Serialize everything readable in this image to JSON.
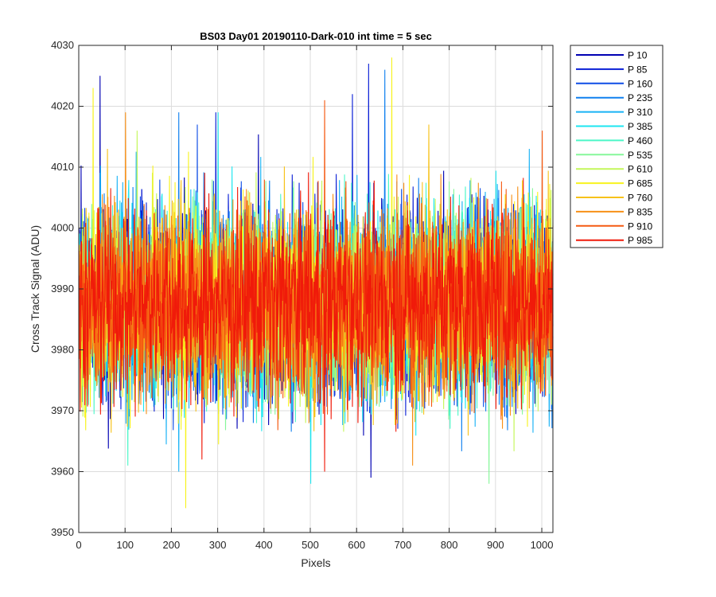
{
  "chart_data": {
    "type": "line",
    "title": "BS03 Day01 20190110-Dark-010 int time = 5 sec",
    "xlabel": "Pixels",
    "ylabel": "Cross Track Signal (ADU)",
    "xlim": [
      0,
      1024
    ],
    "ylim": [
      3950,
      4030
    ],
    "xticks": [
      0,
      100,
      200,
      300,
      400,
      500,
      600,
      700,
      800,
      900,
      1000
    ],
    "yticks": [
      3950,
      3960,
      3970,
      3980,
      3990,
      4000,
      4010,
      4020,
      4030
    ],
    "grid": true,
    "legend_position": "outside-top-right",
    "noise_band": {
      "center": 3988,
      "typical_low": 3975,
      "typical_high": 4003
    },
    "series": [
      {
        "name": "P 10",
        "color": "#0000b3",
        "peaks": [
          {
            "x": 630,
            "y": 3959
          },
          {
            "x": 45,
            "y": 4025
          }
        ]
      },
      {
        "name": "P 85",
        "color": "#0a1fd6",
        "peaks": [
          {
            "x": 625,
            "y": 4027
          },
          {
            "x": 590,
            "y": 4022
          },
          {
            "x": 295,
            "y": 4019
          }
        ]
      },
      {
        "name": "P 160",
        "color": "#0e4de6",
        "peaks": [
          {
            "x": 255,
            "y": 4017
          }
        ]
      },
      {
        "name": "P 235",
        "color": "#1080ef",
        "peaks": [
          {
            "x": 660,
            "y": 4026
          },
          {
            "x": 215,
            "y": 4019
          }
        ]
      },
      {
        "name": "P 310",
        "color": "#19b2f5",
        "peaks": [
          {
            "x": 215,
            "y": 3960
          }
        ]
      },
      {
        "name": "P 385",
        "color": "#1ee6f0",
        "peaks": [
          {
            "x": 500,
            "y": 3958
          },
          {
            "x": 300,
            "y": 4019
          }
        ]
      },
      {
        "name": "P 460",
        "color": "#4cf7c8",
        "peaks": [
          {
            "x": 105,
            "y": 3961
          }
        ]
      },
      {
        "name": "P 535",
        "color": "#86f79a",
        "peaks": [
          {
            "x": 885,
            "y": 3958
          }
        ]
      },
      {
        "name": "P 610",
        "color": "#c4f75a",
        "peaks": [
          {
            "x": 125,
            "y": 4016
          }
        ]
      },
      {
        "name": "P 685",
        "color": "#f7f31e",
        "peaks": [
          {
            "x": 675,
            "y": 4028
          },
          {
            "x": 230,
            "y": 3954
          },
          {
            "x": 30,
            "y": 4023
          }
        ]
      },
      {
        "name": "P 760",
        "color": "#f7c21a",
        "peaks": [
          {
            "x": 755,
            "y": 4017
          }
        ]
      },
      {
        "name": "P 835",
        "color": "#f79017",
        "peaks": [
          {
            "x": 100,
            "y": 4019
          },
          {
            "x": 720,
            "y": 3961
          }
        ]
      },
      {
        "name": "P 910",
        "color": "#f55a12",
        "peaks": [
          {
            "x": 530,
            "y": 4021
          },
          {
            "x": 1000,
            "y": 4016
          }
        ]
      },
      {
        "name": "P 985",
        "color": "#f01a0a",
        "peaks": [
          {
            "x": 530,
            "y": 3960
          },
          {
            "x": 265,
            "y": 3962
          }
        ]
      }
    ]
  }
}
